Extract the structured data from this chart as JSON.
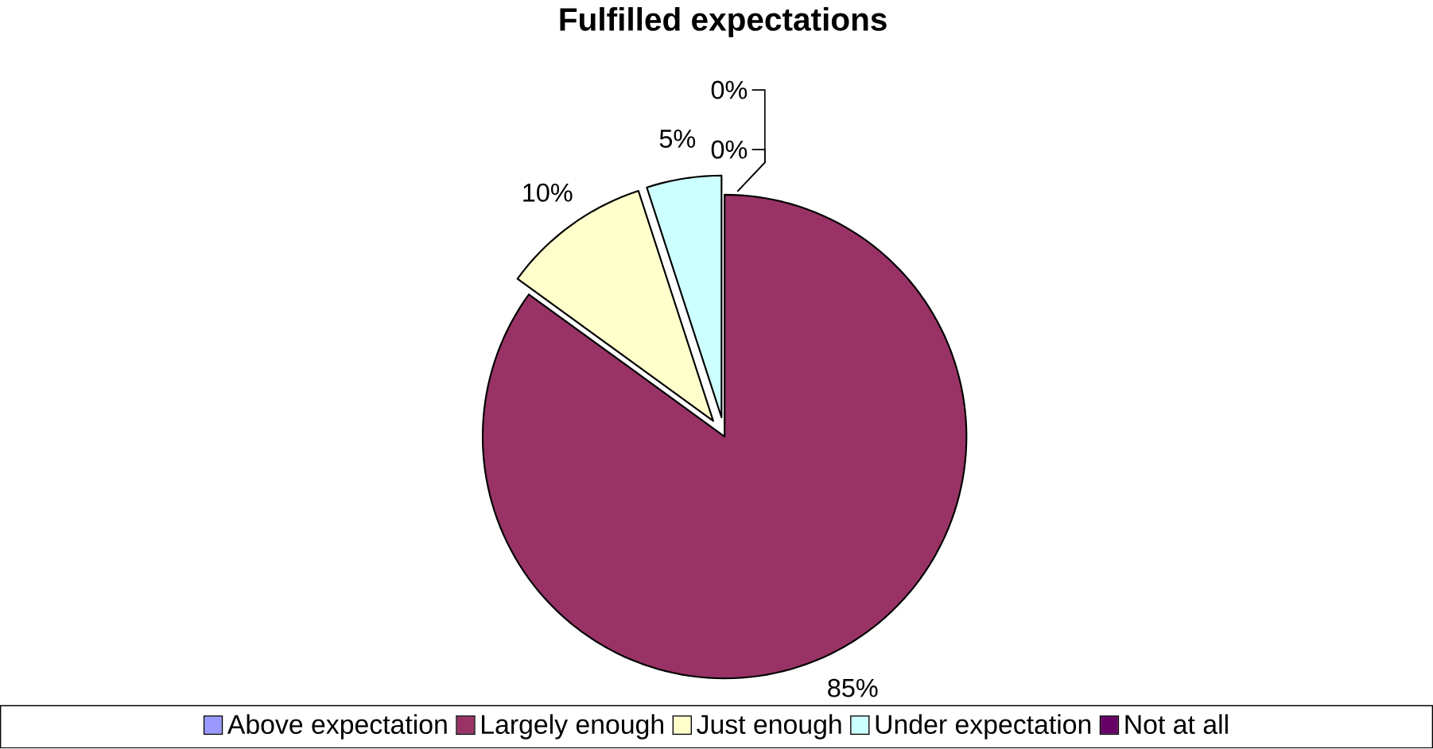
{
  "chart_data": {
    "type": "pie",
    "title": "Fulfilled expectations",
    "categories": [
      "Above expectation",
      "Largely enough",
      "Just enough",
      "Under expectation",
      "Not at all"
    ],
    "values": [
      0,
      85,
      10,
      5,
      0
    ],
    "colors": [
      "#9999ff",
      "#993366",
      "#ffffcc",
      "#ccffff",
      "#660066"
    ],
    "value_labels": [
      "0%",
      "85%",
      "10%",
      "5%",
      "0%"
    ],
    "legend": "bottom"
  }
}
